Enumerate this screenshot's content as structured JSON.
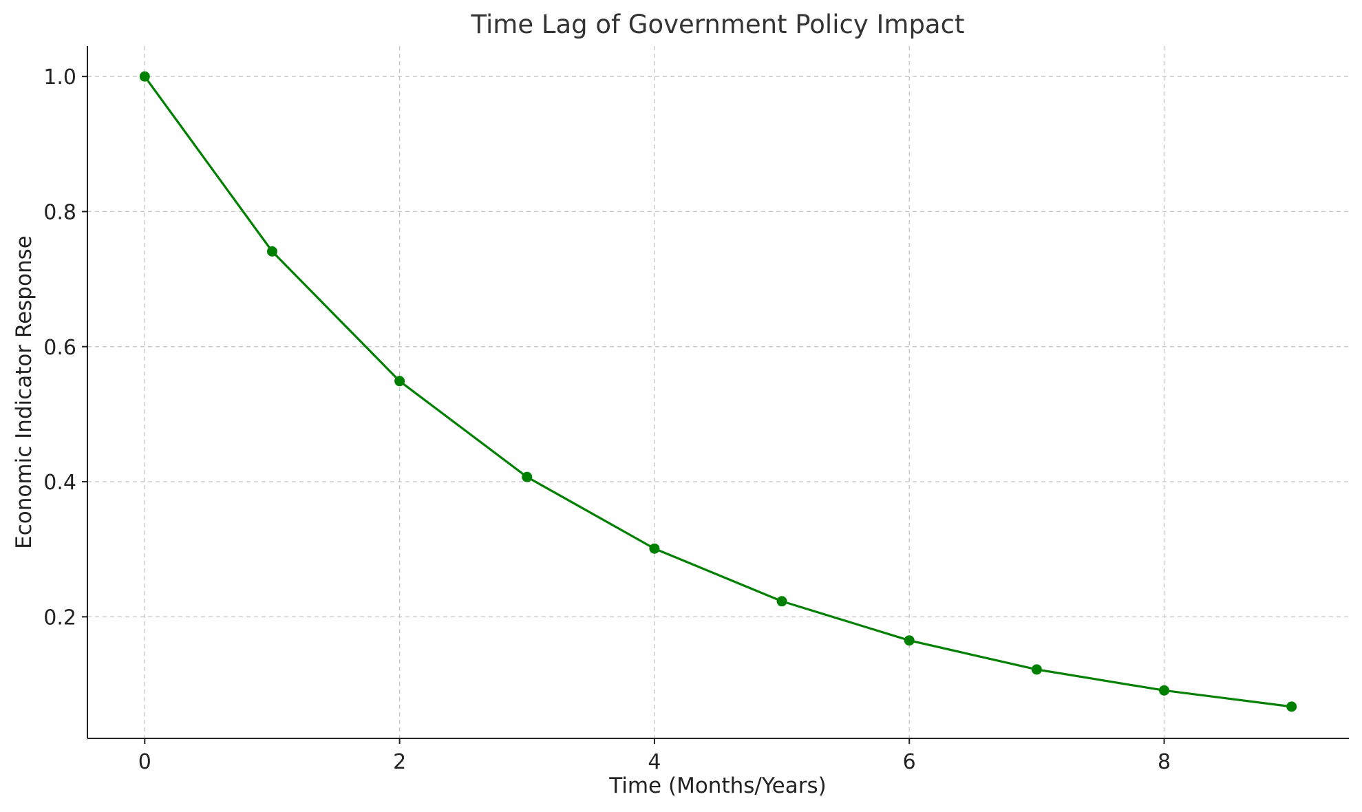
{
  "chart_data": {
    "type": "line",
    "title": "Time Lag of Government Policy Impact",
    "xlabel": "Time (Months/Years)",
    "ylabel": "Economic Indicator Response",
    "x": [
      0,
      1,
      2,
      3,
      4,
      5,
      6,
      7,
      8,
      9
    ],
    "series": [
      {
        "values": [
          1.0,
          0.741,
          0.549,
          0.407,
          0.301,
          0.223,
          0.165,
          0.122,
          0.091,
          0.067
        ],
        "color": "#008000",
        "marker": "circle"
      }
    ],
    "xlim": [
      -0.45,
      9.45
    ],
    "ylim": [
      0.02,
      1.045
    ],
    "xticks": [
      0,
      2,
      4,
      6,
      8
    ],
    "yticks": [
      0.2,
      0.4,
      0.6,
      0.8,
      1.0
    ],
    "xtick_labels": [
      "0",
      "2",
      "4",
      "6",
      "8"
    ],
    "ytick_labels": [
      "0.2",
      "0.4",
      "0.6",
      "0.8",
      "1.0"
    ],
    "grid": true,
    "legend": "none"
  }
}
